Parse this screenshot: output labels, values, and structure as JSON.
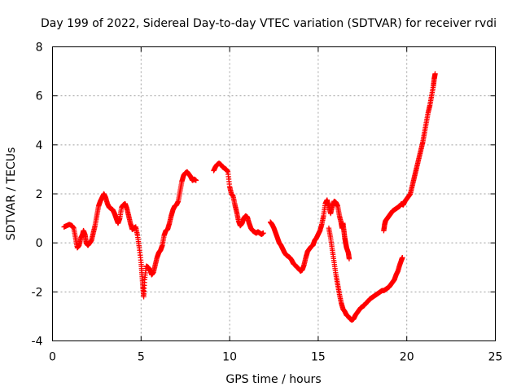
{
  "chart_data": {
    "type": "scatter",
    "title": "Day 199 of 2022, Sidereal Day-to-day VTEC variation (SDTVAR) for receiver rvdi",
    "xlabel": "GPS time / hours",
    "ylabel": "SDTVAR / TECUs",
    "xlim": [
      0,
      25
    ],
    "ylim": [
      -4,
      8
    ],
    "xticks": [
      0,
      5,
      10,
      15,
      20,
      25
    ],
    "yticks": [
      -4,
      -2,
      0,
      2,
      4,
      6,
      8
    ],
    "grid": true,
    "marker": "plus",
    "color": "#ff0000",
    "segments": [
      [
        [
          0.65,
          0.65
        ],
        [
          0.8,
          0.7
        ],
        [
          0.95,
          0.75
        ],
        [
          1.1,
          0.7
        ],
        [
          1.2,
          0.6
        ],
        [
          1.3,
          0.2
        ],
        [
          1.4,
          -0.2
        ],
        [
          1.5,
          -0.1
        ],
        [
          1.6,
          0.2
        ],
        [
          1.7,
          0.35
        ],
        [
          1.75,
          0.5
        ],
        [
          1.85,
          0.3
        ],
        [
          1.9,
          0.0
        ],
        [
          2.0,
          -0.1
        ],
        [
          2.1,
          0.0
        ],
        [
          2.2,
          0.1
        ],
        [
          2.3,
          0.4
        ],
        [
          2.4,
          0.7
        ],
        [
          2.5,
          1.1
        ],
        [
          2.6,
          1.5
        ],
        [
          2.7,
          1.7
        ],
        [
          2.8,
          1.85
        ],
        [
          2.9,
          2.0
        ],
        [
          3.0,
          1.85
        ],
        [
          3.1,
          1.6
        ],
        [
          3.2,
          1.45
        ],
        [
          3.3,
          1.4
        ],
        [
          3.4,
          1.35
        ],
        [
          3.5,
          1.2
        ],
        [
          3.6,
          1.0
        ],
        [
          3.7,
          0.8
        ],
        [
          3.8,
          1.0
        ],
        [
          3.9,
          1.45
        ],
        [
          4.0,
          1.55
        ],
        [
          4.1,
          1.6
        ],
        [
          4.2,
          1.4
        ],
        [
          4.3,
          1.1
        ],
        [
          4.4,
          0.8
        ],
        [
          4.5,
          0.55
        ],
        [
          4.6,
          0.6
        ],
        [
          4.7,
          0.65
        ],
        [
          4.8,
          0.3
        ],
        [
          4.9,
          -0.2
        ],
        [
          5.0,
          -0.8
        ],
        [
          5.05,
          -1.3
        ],
        [
          5.1,
          -1.8
        ],
        [
          5.15,
          -2.2
        ],
        [
          5.2,
          -1.5
        ],
        [
          5.3,
          -0.95
        ],
        [
          5.4,
          -1.0
        ],
        [
          5.5,
          -1.1
        ],
        [
          5.6,
          -1.3
        ],
        [
          5.7,
          -1.2
        ],
        [
          5.8,
          -0.9
        ],
        [
          5.9,
          -0.6
        ],
        [
          6.0,
          -0.4
        ],
        [
          6.1,
          -0.3
        ],
        [
          6.2,
          -0.1
        ],
        [
          6.3,
          0.3
        ],
        [
          6.4,
          0.5
        ],
        [
          6.5,
          0.55
        ],
        [
          6.6,
          0.8
        ],
        [
          6.7,
          1.1
        ],
        [
          6.8,
          1.35
        ],
        [
          6.9,
          1.5
        ],
        [
          7.0,
          1.55
        ],
        [
          7.1,
          1.7
        ],
        [
          7.2,
          2.1
        ],
        [
          7.3,
          2.5
        ],
        [
          7.4,
          2.75
        ],
        [
          7.5,
          2.85
        ],
        [
          7.6,
          2.9
        ],
        [
          7.7,
          2.8
        ],
        [
          7.8,
          2.7
        ],
        [
          7.9,
          2.55
        ],
        [
          8.0,
          2.6
        ],
        [
          8.1,
          2.55
        ]
      ],
      [
        [
          9.1,
          2.95
        ],
        [
          9.2,
          3.1
        ],
        [
          9.3,
          3.2
        ],
        [
          9.4,
          3.25
        ],
        [
          9.5,
          3.2
        ],
        [
          9.6,
          3.1
        ],
        [
          9.7,
          3.05
        ],
        [
          9.8,
          3.0
        ],
        [
          9.9,
          2.9
        ],
        [
          10.0,
          2.3
        ],
        [
          10.1,
          2.0
        ],
        [
          10.2,
          1.9
        ],
        [
          10.3,
          1.55
        ],
        [
          10.4,
          1.25
        ],
        [
          10.5,
          0.9
        ],
        [
          10.6,
          0.7
        ],
        [
          10.7,
          0.8
        ],
        [
          10.8,
          1.0
        ],
        [
          10.9,
          1.1
        ],
        [
          11.0,
          1.05
        ],
        [
          11.1,
          0.8
        ],
        [
          11.2,
          0.6
        ],
        [
          11.3,
          0.5
        ],
        [
          11.4,
          0.45
        ],
        [
          11.5,
          0.4
        ],
        [
          11.6,
          0.45
        ],
        [
          11.7,
          0.4
        ],
        [
          11.8,
          0.35
        ],
        [
          11.9,
          0.4
        ]
      ],
      [
        [
          12.3,
          0.85
        ],
        [
          12.4,
          0.75
        ],
        [
          12.5,
          0.6
        ],
        [
          12.6,
          0.4
        ],
        [
          12.7,
          0.2
        ],
        [
          12.8,
          0.0
        ],
        [
          12.9,
          -0.1
        ],
        [
          13.0,
          -0.25
        ],
        [
          13.1,
          -0.4
        ],
        [
          13.2,
          -0.5
        ],
        [
          13.3,
          -0.55
        ],
        [
          13.4,
          -0.6
        ],
        [
          13.5,
          -0.7
        ],
        [
          13.6,
          -0.85
        ],
        [
          13.7,
          -0.9
        ],
        [
          13.8,
          -1.0
        ],
        [
          13.9,
          -1.05
        ],
        [
          14.0,
          -1.15
        ],
        [
          14.1,
          -1.1
        ],
        [
          14.2,
          -0.9
        ],
        [
          14.3,
          -0.6
        ],
        [
          14.4,
          -0.35
        ],
        [
          14.5,
          -0.25
        ],
        [
          14.6,
          -0.15
        ],
        [
          14.7,
          -0.1
        ],
        [
          14.8,
          0.1
        ],
        [
          14.9,
          0.2
        ],
        [
          15.0,
          0.35
        ],
        [
          15.1,
          0.5
        ],
        [
          15.2,
          0.75
        ],
        [
          15.3,
          1.1
        ],
        [
          15.4,
          1.6
        ],
        [
          15.5,
          1.75
        ],
        [
          15.6,
          1.5
        ],
        [
          15.7,
          1.2
        ],
        [
          15.8,
          1.5
        ],
        [
          15.9,
          1.7
        ],
        [
          16.0,
          1.65
        ],
        [
          16.1,
          1.5
        ],
        [
          16.2,
          1.1
        ],
        [
          16.3,
          0.8
        ],
        [
          16.35,
          0.6
        ],
        [
          16.4,
          0.8
        ],
        [
          16.45,
          0.5
        ],
        [
          16.5,
          0.2
        ],
        [
          16.55,
          0.0
        ],
        [
          16.6,
          -0.2
        ],
        [
          16.7,
          -0.4
        ],
        [
          16.75,
          -0.65
        ]
      ],
      [
        [
          15.6,
          0.6
        ],
        [
          15.7,
          0.2
        ],
        [
          15.8,
          -0.3
        ],
        [
          15.9,
          -0.8
        ],
        [
          16.0,
          -1.3
        ],
        [
          16.1,
          -1.7
        ],
        [
          16.2,
          -2.1
        ],
        [
          16.3,
          -2.45
        ],
        [
          16.4,
          -2.7
        ],
        [
          16.5,
          -2.8
        ],
        [
          16.6,
          -2.95
        ],
        [
          16.7,
          -3.0
        ],
        [
          16.8,
          -3.1
        ],
        [
          16.9,
          -3.15
        ],
        [
          17.0,
          -3.1
        ],
        [
          17.1,
          -2.95
        ],
        [
          17.2,
          -2.85
        ],
        [
          17.3,
          -2.75
        ],
        [
          17.4,
          -2.65
        ],
        [
          17.5,
          -2.6
        ],
        [
          17.6,
          -2.55
        ],
        [
          17.7,
          -2.45
        ],
        [
          17.8,
          -2.4
        ],
        [
          17.9,
          -2.3
        ],
        [
          18.0,
          -2.25
        ],
        [
          18.1,
          -2.2
        ],
        [
          18.2,
          -2.15
        ],
        [
          18.3,
          -2.1
        ],
        [
          18.4,
          -2.05
        ],
        [
          18.5,
          -2.0
        ],
        [
          18.6,
          -1.95
        ],
        [
          18.7,
          -1.95
        ],
        [
          18.8,
          -1.9
        ],
        [
          18.9,
          -1.85
        ],
        [
          19.0,
          -1.8
        ],
        [
          19.1,
          -1.7
        ],
        [
          19.2,
          -1.6
        ],
        [
          19.3,
          -1.5
        ],
        [
          19.4,
          -1.3
        ],
        [
          19.5,
          -1.15
        ],
        [
          19.6,
          -0.9
        ],
        [
          19.7,
          -0.7
        ],
        [
          19.75,
          -0.6
        ]
      ],
      [
        [
          18.7,
          0.5
        ],
        [
          18.75,
          0.75
        ],
        [
          18.8,
          0.9
        ],
        [
          18.9,
          1.0
        ],
        [
          19.0,
          1.1
        ],
        [
          19.1,
          1.2
        ],
        [
          19.2,
          1.3
        ],
        [
          19.3,
          1.35
        ],
        [
          19.4,
          1.4
        ],
        [
          19.5,
          1.45
        ],
        [
          19.6,
          1.5
        ],
        [
          19.7,
          1.6
        ],
        [
          19.8,
          1.55
        ],
        [
          19.9,
          1.7
        ],
        [
          20.0,
          1.8
        ],
        [
          20.1,
          1.9
        ],
        [
          20.2,
          2.0
        ],
        [
          20.3,
          2.3
        ],
        [
          20.4,
          2.6
        ],
        [
          20.5,
          2.9
        ],
        [
          20.6,
          3.2
        ],
        [
          20.7,
          3.5
        ],
        [
          20.8,
          3.8
        ],
        [
          20.9,
          4.1
        ],
        [
          21.0,
          4.5
        ],
        [
          21.1,
          4.9
        ],
        [
          21.2,
          5.3
        ],
        [
          21.3,
          5.6
        ],
        [
          21.4,
          6.0
        ],
        [
          21.5,
          6.4
        ],
        [
          21.55,
          6.7
        ],
        [
          21.6,
          6.9
        ]
      ]
    ]
  }
}
